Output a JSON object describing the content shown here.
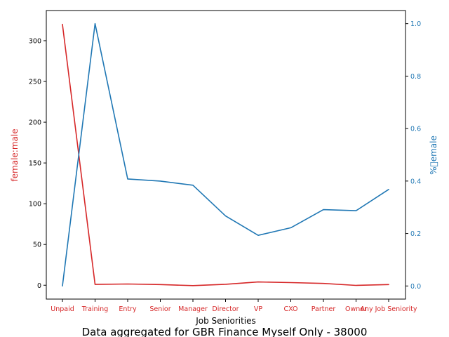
{
  "chart_data": {
    "type": "line",
    "caption": "Data aggregated for GBR Finance Myself Only - 38000",
    "xlabel": "Job Seniorities",
    "categories": [
      "Unpaid",
      "Training",
      "Entry",
      "Senior",
      "Manager",
      "Director",
      "VP",
      "CXO",
      "Partner",
      "Owner",
      "Any Job Seniority"
    ],
    "left_axis": {
      "label": "female:male",
      "color": "#d62728",
      "ylim": [
        -17,
        337
      ],
      "ticks": [
        0,
        50,
        100,
        150,
        200,
        250,
        300
      ],
      "tick_labels": [
        "0",
        "50",
        "100",
        "150",
        "200",
        "250",
        "300"
      ]
    },
    "right_axis": {
      "label": "%\u0000emale",
      "color": "#1f77b4",
      "ylim": [
        -0.05,
        1.05
      ],
      "ticks": [
        0.0,
        0.2,
        0.4,
        0.6,
        0.8,
        1.0
      ],
      "tick_labels": [
        "0.0",
        "0.2",
        "0.4",
        "0.6",
        "0.8",
        "1.0"
      ]
    },
    "series": [
      {
        "axis": "left",
        "color": "#d62728",
        "values": [
          320,
          1.0,
          1.5,
          0.8,
          -0.5,
          1.2,
          4.0,
          3.2,
          2.2,
          -0.2,
          0.8
        ]
      },
      {
        "axis": "right",
        "color": "#1f77b4",
        "values": [
          0.0,
          1.0,
          0.408,
          0.4,
          0.384,
          0.267,
          0.193,
          0.222,
          0.291,
          0.287,
          0.368
        ]
      }
    ],
    "grid": false,
    "legend": "none"
  }
}
